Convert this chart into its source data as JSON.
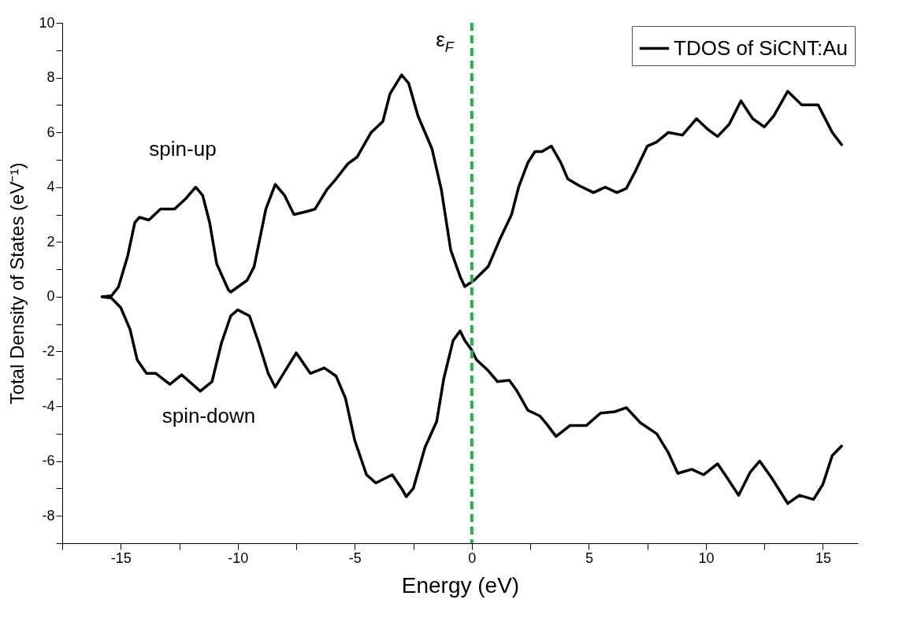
{
  "chart_data": {
    "type": "line",
    "xlabel": "Energy (eV)",
    "ylabel": "Total Density of States (eV⁻¹)",
    "xlim": [
      -17.5,
      16.5
    ],
    "ylim": [
      -9,
      10
    ],
    "xticks": [
      {
        "value": -17.5,
        "label": null
      },
      -15,
      {
        "value": -12.5,
        "label": null
      },
      -10,
      {
        "value": -7.5,
        "label": null
      },
      -5,
      {
        "value": -2.5,
        "label": null
      },
      0,
      {
        "value": 2.5,
        "label": null
      },
      5,
      {
        "value": 7.5,
        "label": null
      },
      10,
      {
        "value": 12.5,
        "label": null
      },
      15
    ],
    "yticks": [
      {
        "value": -9,
        "label": null
      },
      -8,
      {
        "value": -7,
        "label": null
      },
      -6,
      {
        "value": -5,
        "label": null
      },
      -4,
      {
        "value": -3,
        "label": null
      },
      -2,
      {
        "value": -1,
        "label": null
      },
      0,
      {
        "value": 1,
        "label": null
      },
      2,
      {
        "value": 3,
        "label": null
      },
      4,
      {
        "value": 5,
        "label": null
      },
      6,
      {
        "value": 7,
        "label": null
      },
      8,
      {
        "value": 9,
        "label": null
      },
      10
    ],
    "grid": false,
    "legend": "top right",
    "line_style": "solid",
    "series": [
      {
        "name": "TDOS of SiCNT:Au",
        "color": "#000000",
        "x": [
          -15.8,
          -15.4,
          -15.1,
          -14.7,
          -14.4,
          -14.2,
          -13.8,
          -13.3,
          -12.7,
          -12.2,
          -11.8,
          -11.5,
          -11.2,
          -10.9,
          -10.4,
          -10.3,
          -9.6,
          -9.3,
          -8.8,
          -8.4,
          -8.0,
          -7.6,
          -7.1,
          -6.7,
          -6.2,
          -5.8,
          -5.3,
          -4.9,
          -4.3,
          -3.8,
          -3.5,
          -3.0,
          -2.7,
          -2.3,
          -1.7,
          -1.3,
          -0.9,
          -0.5,
          -0.3,
          0.1,
          0.7,
          1.2,
          1.7,
          2.0,
          2.4,
          2.7,
          3.0,
          3.4,
          3.8,
          4.1,
          4.6,
          5.2,
          5.7,
          6.2,
          6.6,
          7.0,
          7.5,
          7.9,
          8.4,
          9.0,
          9.6,
          10.1,
          10.5,
          11.0,
          11.5,
          12.0,
          12.5,
          12.9,
          13.5,
          14.1,
          14.8,
          15.4,
          15.8
        ],
        "values": [
          0,
          0.03,
          0.35,
          1.5,
          2.7,
          2.9,
          2.8,
          3.2,
          3.2,
          3.6,
          4.0,
          3.7,
          2.7,
          1.2,
          0.25,
          0.17,
          0.6,
          1.1,
          3.2,
          4.1,
          3.7,
          3.0,
          3.1,
          3.2,
          3.9,
          4.3,
          4.85,
          5.1,
          6.0,
          6.4,
          7.4,
          8.1,
          7.8,
          6.6,
          5.4,
          3.9,
          1.7,
          0.74,
          0.37,
          0.6,
          1.1,
          2.1,
          3.0,
          4.0,
          4.9,
          5.3,
          5.3,
          5.5,
          4.9,
          4.3,
          4.05,
          3.8,
          4.0,
          3.8,
          3.95,
          4.6,
          5.5,
          5.65,
          6.0,
          5.9,
          6.5,
          6.1,
          5.85,
          6.3,
          7.15,
          6.5,
          6.2,
          6.6,
          7.5,
          7.0,
          7.0,
          6.0,
          5.55
        ]
      },
      {
        "color": "#000000",
        "x": [
          -15.8,
          -15.4,
          -15.0,
          -14.6,
          -14.3,
          -13.9,
          -13.5,
          -12.9,
          -12.4,
          -11.6,
          -11.1,
          -10.7,
          -10.3,
          -10.0,
          -9.5,
          -9.1,
          -8.7,
          -8.4,
          -7.9,
          -7.5,
          -6.9,
          -6.3,
          -5.8,
          -5.4,
          -5.0,
          -4.5,
          -4.1,
          -3.4,
          -3.0,
          -2.8,
          -2.5,
          -2.0,
          -1.5,
          -1.2,
          -0.8,
          -0.5,
          -0.3,
          0.0,
          0.2,
          0.7,
          1.1,
          1.6,
          1.9,
          2.4,
          2.9,
          3.2,
          3.6,
          4.2,
          4.9,
          5.5,
          6.1,
          6.6,
          7.2,
          7.9,
          8.4,
          8.8,
          9.4,
          9.9,
          10.5,
          10.9,
          11.4,
          11.9,
          12.3,
          12.8,
          13.5,
          14.0,
          14.6,
          15.0,
          15.4,
          15.8
        ],
        "values": [
          0,
          -0.05,
          -0.4,
          -1.2,
          -2.3,
          -2.8,
          -2.8,
          -3.2,
          -2.85,
          -3.45,
          -3.1,
          -1.7,
          -0.7,
          -0.48,
          -0.7,
          -1.7,
          -2.8,
          -3.3,
          -2.6,
          -2.05,
          -2.8,
          -2.6,
          -2.9,
          -3.7,
          -5.25,
          -6.5,
          -6.8,
          -6.5,
          -7.0,
          -7.3,
          -7.0,
          -5.5,
          -4.55,
          -3.0,
          -1.6,
          -1.25,
          -1.6,
          -1.95,
          -2.3,
          -2.7,
          -3.1,
          -3.05,
          -3.4,
          -4.15,
          -4.35,
          -4.65,
          -5.1,
          -4.7,
          -4.7,
          -4.25,
          -4.2,
          -4.05,
          -4.6,
          -5.0,
          -5.7,
          -6.45,
          -6.3,
          -6.5,
          -6.1,
          -6.6,
          -7.25,
          -6.4,
          -6.0,
          -6.6,
          -7.55,
          -7.25,
          -7.4,
          -6.85,
          -5.8,
          -5.45
        ]
      }
    ],
    "ref_lines": [
      {
        "axis": "x",
        "value": 0,
        "label": "ε$_{F}$",
        "color": "#22b14c",
        "line_style": "dashed"
      }
    ],
    "annotations": [
      "spin-up",
      "spin-down"
    ]
  }
}
